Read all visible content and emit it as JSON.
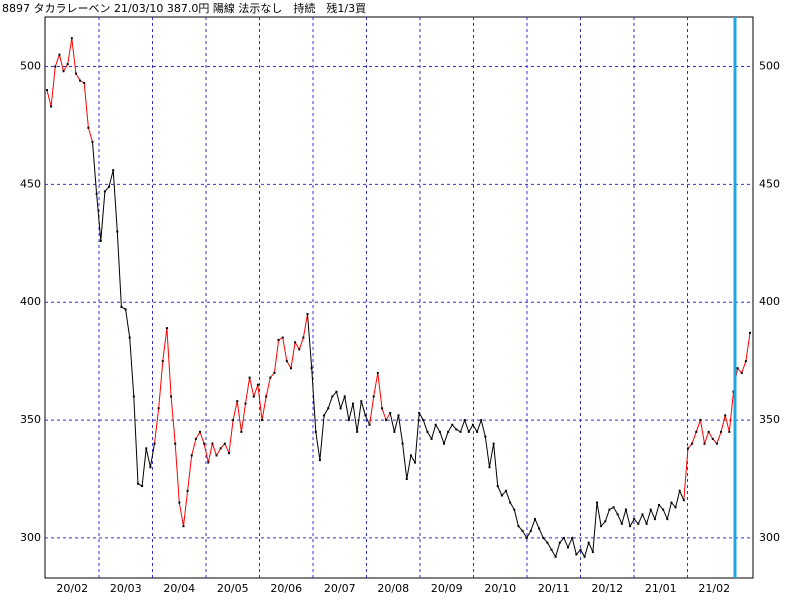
{
  "chart_data": {
    "type": "line",
    "title": "8897 タカラレーベン 21/03/10 387.0円 陽線 法示なし　持続　残1/3買",
    "ylim": [
      283,
      521
    ],
    "yticks": [
      300,
      350,
      400,
      450,
      500
    ],
    "x_labels": [
      "20/02",
      "20/03",
      "20/04",
      "20/05",
      "20/06",
      "20/07",
      "20/08",
      "20/09",
      "20/10",
      "20/11",
      "20/12",
      "21/01",
      "21/02"
    ],
    "grid": true,
    "segments": [
      {
        "color": "#ff0000",
        "values": [
          490,
          483,
          500,
          505,
          498,
          501,
          512,
          497,
          494,
          493,
          474,
          468
        ]
      },
      {
        "color": "#000000",
        "values": [
          446,
          426,
          447,
          449,
          456,
          430,
          398,
          397,
          385,
          360,
          323,
          322,
          338,
          330,
          340
        ]
      },
      {
        "color": "#ff0000",
        "values": [
          355,
          375,
          389,
          360,
          340,
          315,
          305,
          320,
          335,
          342,
          345,
          340,
          332,
          340,
          335,
          338,
          340,
          336,
          350,
          358,
          345,
          357,
          368,
          360,
          365,
          350,
          360,
          368,
          370,
          384,
          385,
          375,
          372,
          383,
          380,
          385,
          395
        ]
      },
      {
        "color": "#000000",
        "values": [
          372,
          345,
          333,
          352,
          355,
          360,
          362,
          355,
          360,
          350,
          357,
          345,
          358,
          352,
          348
        ]
      },
      {
        "color": "#ff0000",
        "values": [
          360,
          370,
          355,
          350,
          353
        ]
      },
      {
        "color": "#000000",
        "values": [
          345,
          352,
          340,
          325,
          335,
          332,
          353,
          350,
          345,
          342,
          348,
          345,
          340,
          345,
          348,
          346,
          345,
          350,
          345,
          348,
          345,
          350,
          343,
          330,
          340,
          322,
          318,
          320,
          315,
          312,
          305,
          303,
          300,
          303,
          308,
          304,
          300,
          298,
          295,
          292,
          298,
          300,
          296,
          300,
          293,
          295,
          292,
          298,
          294,
          315,
          305,
          307,
          312,
          313,
          310,
          306,
          312,
          305,
          308,
          306,
          310,
          306,
          312,
          308,
          314,
          312,
          308,
          315,
          313,
          320,
          316
        ]
      },
      {
        "color": "#ff0000",
        "values": [
          338,
          340,
          345,
          350,
          340,
          345,
          342,
          340,
          345,
          352,
          345,
          362,
          372,
          370,
          375,
          387
        ]
      }
    ]
  }
}
